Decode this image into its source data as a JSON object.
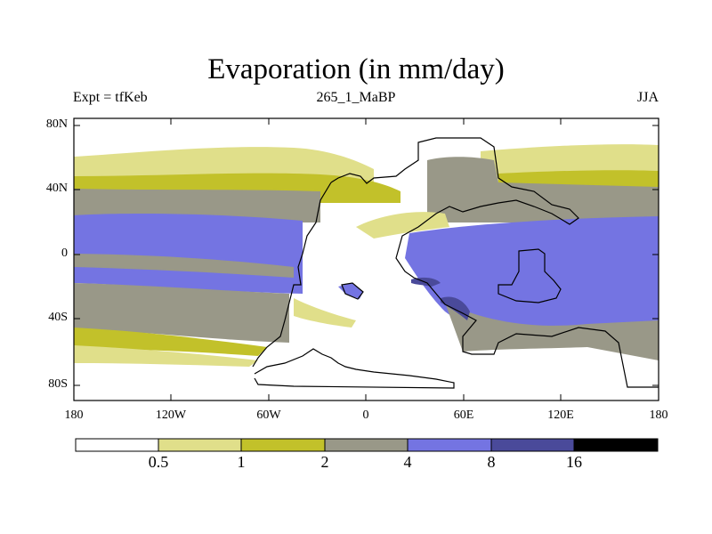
{
  "title": "Evaporation (in mm/day)",
  "subtitle_left": "Expt = tfKeb",
  "subtitle_center": "265_1_MaBP",
  "subtitle_right": "JJA",
  "lat_ticks": [
    "80N",
    "40N",
    "0",
    "40S",
    "80S"
  ],
  "lon_ticks": [
    "180",
    "120W",
    "60W",
    "0",
    "60E",
    "120E",
    "180"
  ],
  "colorbar": {
    "labels": [
      "0.5",
      "1",
      "2",
      "4",
      "8",
      "16"
    ],
    "colors": [
      "#ffffff",
      "#e0df8a",
      "#c2c12a",
      "#999888",
      "#7474e2",
      "#4a4a9a",
      "#000000"
    ]
  },
  "map_colors": {
    "lt05": "#ffffff",
    "c05_1": "#e0df8a",
    "c1_2": "#c2c12a",
    "c2_4": "#999888",
    "c4_8": "#7474e2",
    "c8_16": "#4a4a9a"
  }
}
